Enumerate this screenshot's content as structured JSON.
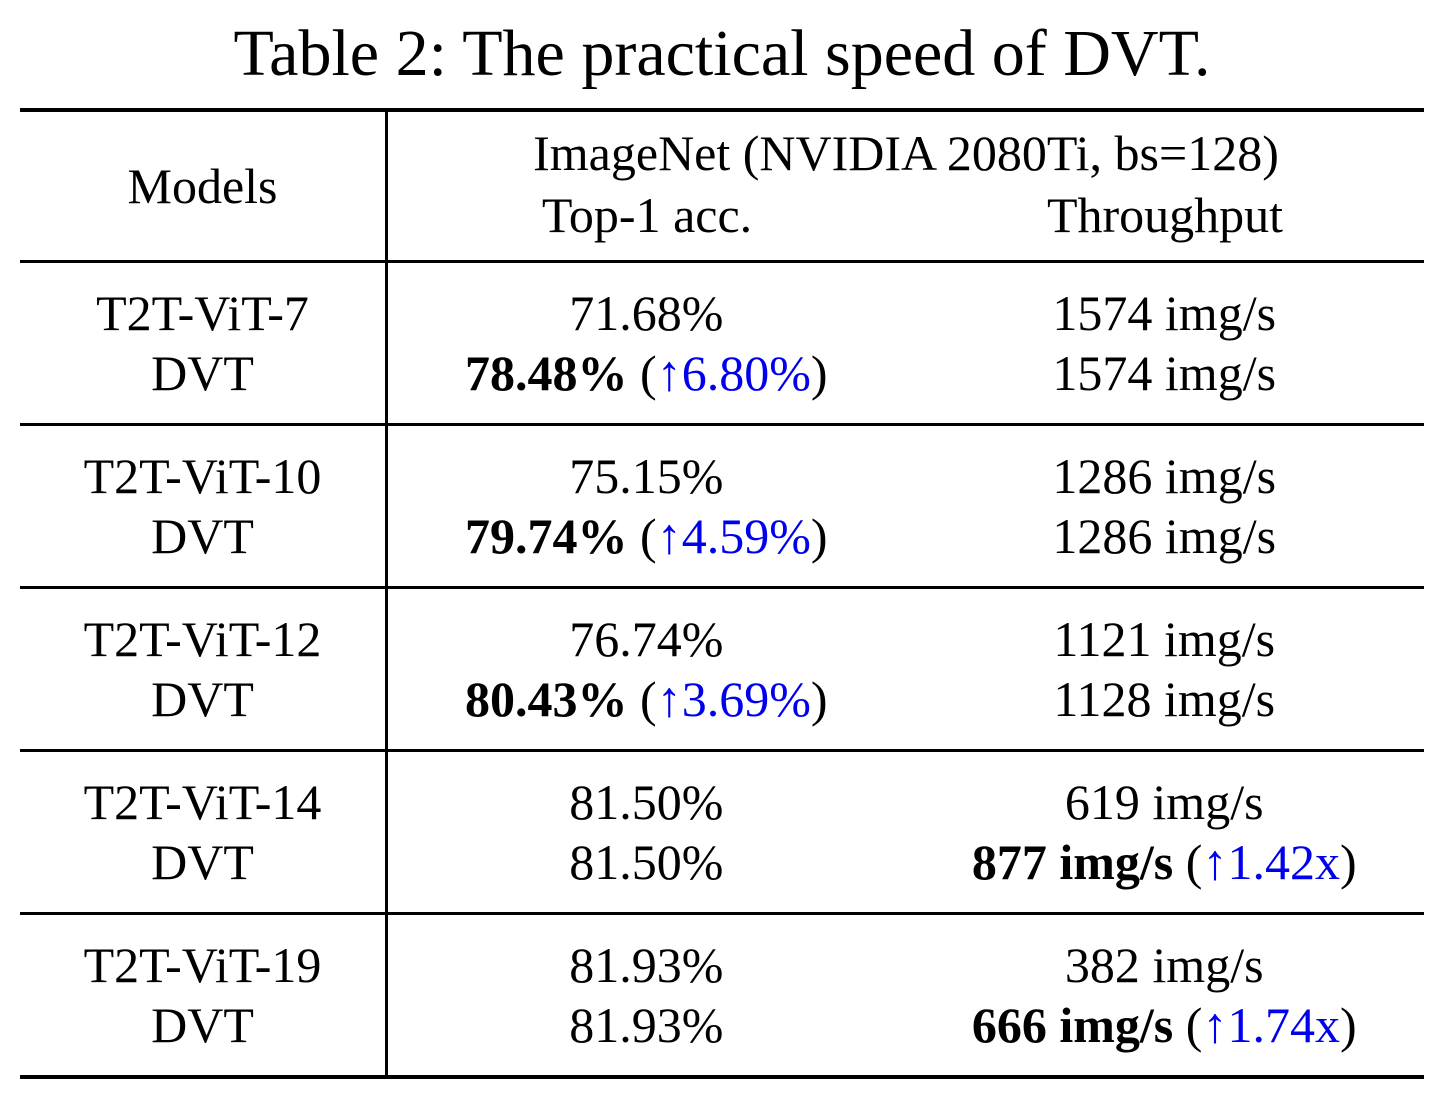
{
  "title": "Table 2: The practical speed of DVT.",
  "colors": {
    "text": "#000000",
    "background": "#FFFFFF",
    "improvement_blue": "#0000EE",
    "rule_black": "#000000"
  },
  "table": {
    "header": {
      "models_label": "Models",
      "group_label": "ImageNet (NVIDIA 2080Ti, bs=128)",
      "subcol_acc": "Top-1 acc.",
      "subcol_throughput": "Throughput"
    },
    "groups": [
      {
        "rows": [
          {
            "model": "T2T-ViT-7",
            "acc": {
              "main": "71.68%"
            },
            "thr": {
              "main": "1574 img/s"
            }
          },
          {
            "model": "DVT",
            "acc": {
              "main": "78.48%",
              "lp": " (",
              "delta": "↑6.80%",
              "rp": ")"
            },
            "thr": {
              "main": "1574 img/s"
            }
          }
        ]
      },
      {
        "rows": [
          {
            "model": "T2T-ViT-10",
            "acc": {
              "main": "75.15%"
            },
            "thr": {
              "main": "1286 img/s"
            }
          },
          {
            "model": "DVT",
            "acc": {
              "main": "79.74%",
              "lp": " (",
              "delta": "↑4.59%",
              "rp": ")"
            },
            "thr": {
              "main": "1286 img/s"
            }
          }
        ]
      },
      {
        "rows": [
          {
            "model": "T2T-ViT-12",
            "acc": {
              "main": "76.74%"
            },
            "thr": {
              "main": "1121 img/s"
            }
          },
          {
            "model": "DVT",
            "acc": {
              "main": "80.43%",
              "lp": " (",
              "delta": "↑3.69%",
              "rp": ")"
            },
            "thr": {
              "main": "1128 img/s"
            }
          }
        ]
      },
      {
        "rows": [
          {
            "model": "T2T-ViT-14",
            "acc": {
              "main": "81.50%"
            },
            "thr": {
              "main": "619 img/s"
            }
          },
          {
            "model": "DVT",
            "acc": {
              "main": "81.50%"
            },
            "thr": {
              "main": "877 img/s",
              "lp": " (",
              "delta": "↑1.42x",
              "rp": ")"
            }
          }
        ]
      },
      {
        "rows": [
          {
            "model": "T2T-ViT-19",
            "acc": {
              "main": "81.93%"
            },
            "thr": {
              "main": "382 img/s"
            }
          },
          {
            "model": "DVT",
            "acc": {
              "main": "81.93%"
            },
            "thr": {
              "main": "666 img/s",
              "lp": " (",
              "delta": "↑1.74x",
              "rp": ")"
            }
          }
        ]
      }
    ]
  }
}
